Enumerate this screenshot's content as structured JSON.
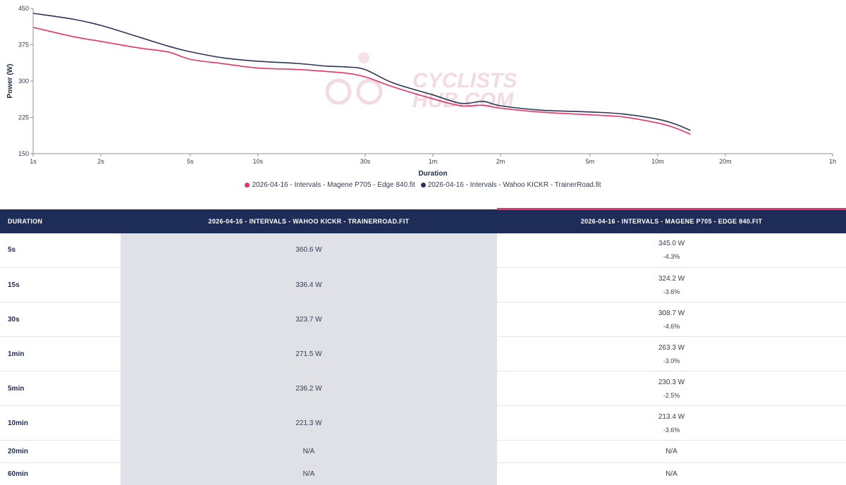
{
  "chart_data": {
    "type": "line",
    "xlabel": "Duration",
    "ylabel": "Power (W)",
    "x_scale": "log",
    "x_ticks": [
      {
        "seconds": 1,
        "label": "1s"
      },
      {
        "seconds": 2,
        "label": "2s"
      },
      {
        "seconds": 5,
        "label": "5s"
      },
      {
        "seconds": 10,
        "label": "10s"
      },
      {
        "seconds": 30,
        "label": "30s"
      },
      {
        "seconds": 60,
        "label": "1m"
      },
      {
        "seconds": 120,
        "label": "2m"
      },
      {
        "seconds": 300,
        "label": "5m"
      },
      {
        "seconds": 600,
        "label": "10m"
      },
      {
        "seconds": 1200,
        "label": "20m"
      },
      {
        "seconds": 3600,
        "label": "1h"
      }
    ],
    "xlim": [
      1,
      3600
    ],
    "ylim": [
      150,
      450
    ],
    "y_ticks": [
      150,
      225,
      300,
      375,
      450
    ],
    "grid": false,
    "legend_position": "bottom-center",
    "series": [
      {
        "name": "2026-04-16 - Intervals - Magene P705 - Edge 840.fit",
        "color": "#e8336b",
        "x": [
          1,
          1.5,
          2,
          3,
          4,
          5,
          7,
          10,
          15,
          20,
          25,
          30,
          40,
          60,
          80,
          100,
          120,
          180,
          300,
          420,
          600,
          720,
          840
        ],
        "y": [
          411,
          392,
          382,
          368,
          360,
          345,
          336,
          327,
          324,
          320,
          316,
          308.7,
          288,
          263.3,
          249,
          250,
          244,
          236,
          230.3,
          226,
          213.4,
          203,
          190
        ]
      },
      {
        "name": "2026-04-16 - Intervals - Wahoo KICKR - TrainerRoad.fit",
        "color": "#2a3558",
        "x": [
          1,
          1.5,
          2,
          3,
          4,
          5,
          7,
          10,
          15,
          20,
          25,
          30,
          40,
          60,
          80,
          100,
          120,
          180,
          300,
          420,
          600,
          720,
          840
        ],
        "y": [
          440,
          428,
          415,
          390,
          372,
          360.6,
          348,
          341,
          336.4,
          331,
          329,
          323.7,
          296,
          271.5,
          254,
          258,
          249,
          240,
          236.2,
          232,
          221.3,
          211,
          198
        ]
      }
    ]
  },
  "legend": {
    "items": [
      {
        "name": "2026-04-16 - Intervals - Magene P705 - Edge 840.fit",
        "color": "#e8336b"
      },
      {
        "name": "2026-04-16 - Intervals - Wahoo KICKR - TrainerRoad.fit",
        "color": "#2a3558"
      }
    ]
  },
  "watermark": {
    "line1": "CYCLISTS",
    "line2": "HUB.COM"
  },
  "table": {
    "headers": {
      "duration": "Duration",
      "a": "2026-04-16 - Intervals - Wahoo KICKR - TrainerRoad.fit",
      "b": "2026-04-16 - Intervals - Magene P705 - Edge 840.fit"
    },
    "rows": [
      {
        "duration": "5s",
        "a": "360.6 W",
        "b": "345.0 W",
        "diff": "-4.3%"
      },
      {
        "duration": "15s",
        "a": "336.4 W",
        "b": "324.2 W",
        "diff": "-3.6%"
      },
      {
        "duration": "30s",
        "a": "323.7 W",
        "b": "308.7 W",
        "diff": "-4.6%"
      },
      {
        "duration": "1min",
        "a": "271.5 W",
        "b": "263.3 W",
        "diff": "-3.0%"
      },
      {
        "duration": "5min",
        "a": "236.2 W",
        "b": "230.3 W",
        "diff": "-2.5%"
      },
      {
        "duration": "10min",
        "a": "221.3 W",
        "b": "213.4 W",
        "diff": "-3.6%"
      },
      {
        "duration": "20min",
        "a": "N/A",
        "b": "N/A",
        "diff": ""
      },
      {
        "duration": "60min",
        "a": "N/A",
        "b": "N/A",
        "diff": ""
      }
    ]
  }
}
